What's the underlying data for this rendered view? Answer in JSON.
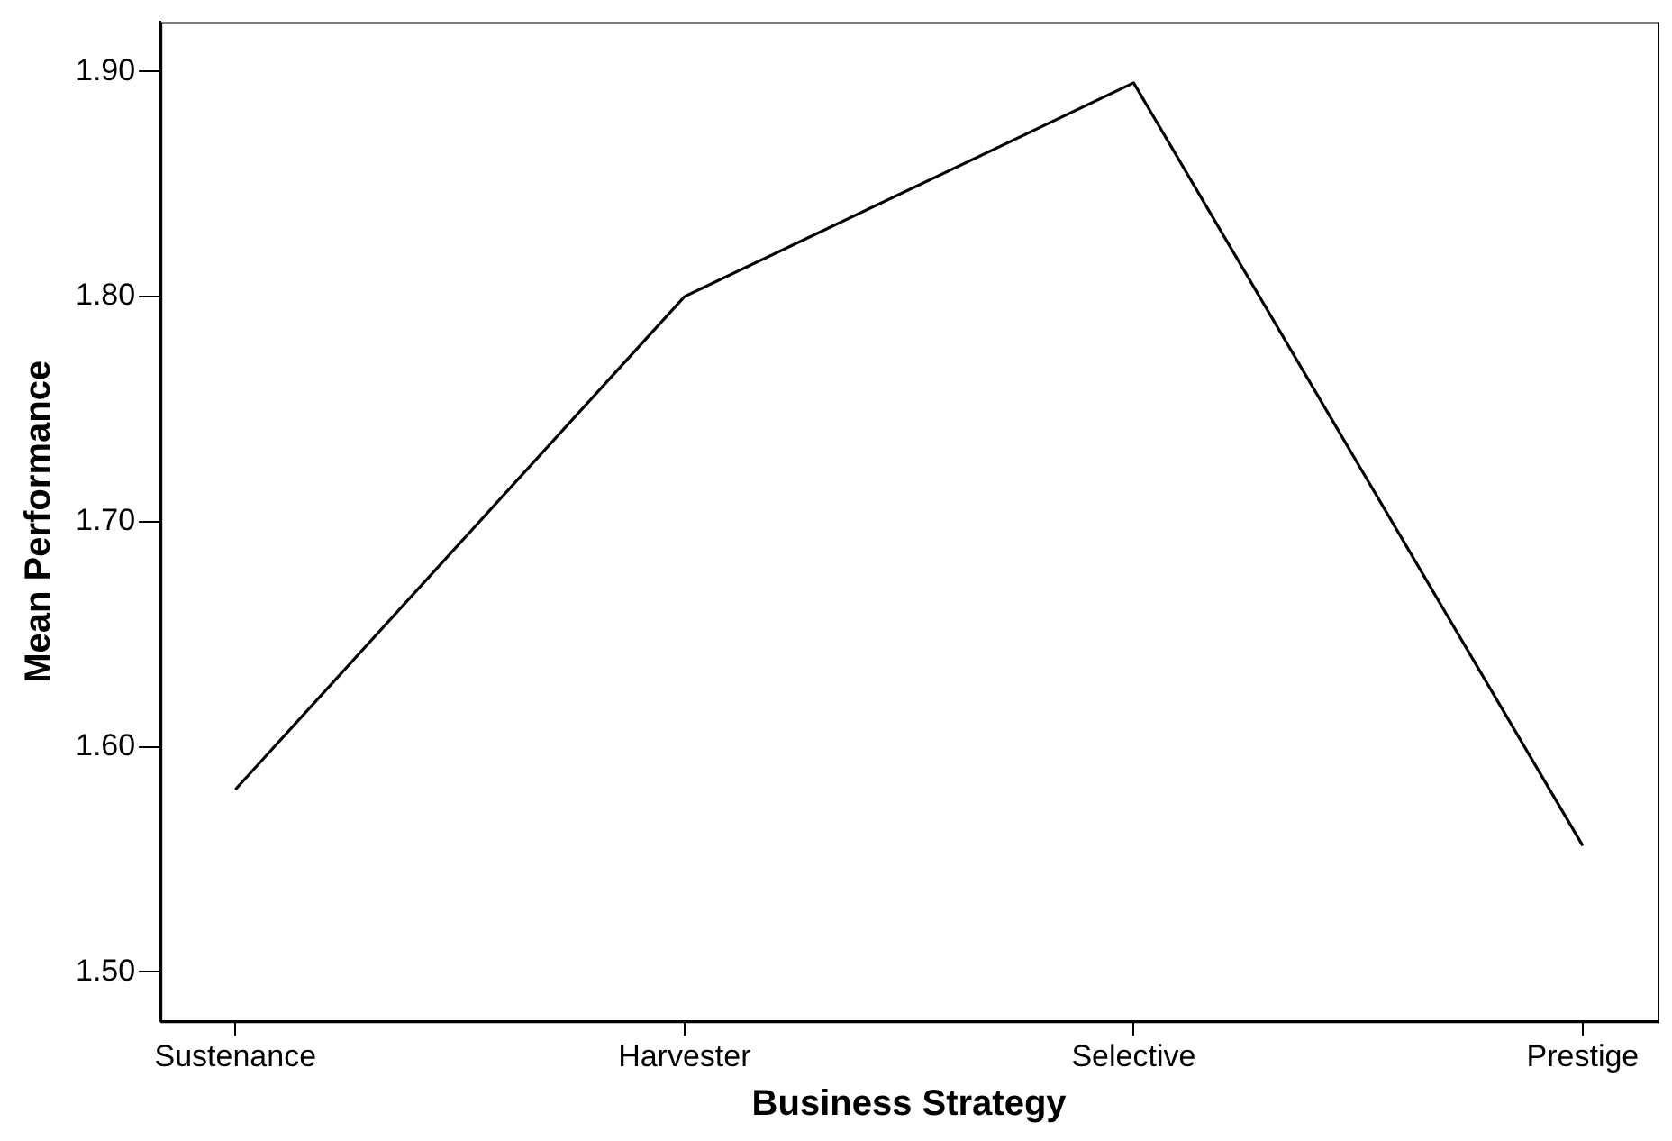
{
  "chart_data": {
    "type": "line",
    "xlabel": "Business Strategy",
    "ylabel": "Mean Performance",
    "categories": [
      "Sustenance",
      "Harvester",
      "Selective",
      "Prestige"
    ],
    "series": [
      {
        "color": "#000000",
        "values": [
          1.581,
          1.8,
          1.895,
          1.556
        ]
      }
    ],
    "ylim": [
      1.478,
      1.922
    ],
    "yticks": [
      {
        "value": 1.5,
        "label": "1.50"
      },
      {
        "value": 1.6,
        "label": "1.60"
      },
      {
        "value": 1.7,
        "label": "1.70"
      },
      {
        "value": 1.8,
        "label": "1.80"
      },
      {
        "value": 1.9,
        "label": "1.90"
      }
    ],
    "grid": false,
    "legend": false,
    "marker": "none",
    "line_style": "solid"
  }
}
